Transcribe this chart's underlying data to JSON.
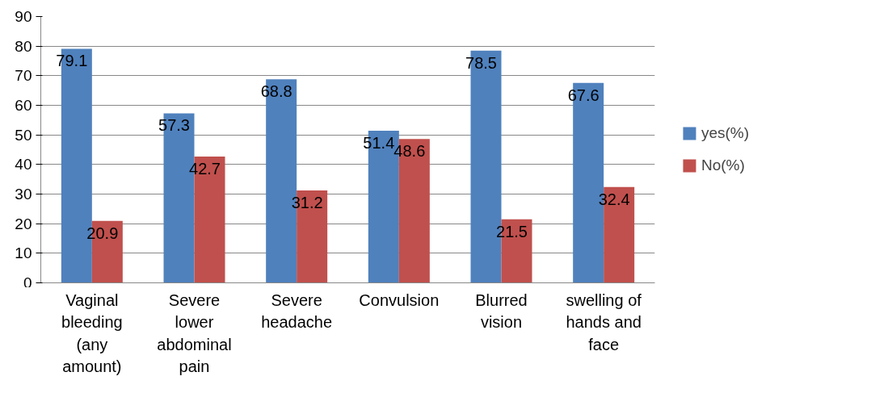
{
  "chart_data": {
    "type": "bar",
    "categories": [
      "Vaginal bleeding (any amount)",
      "Severe lower abdominal pain",
      "Severe headache",
      "Convulsion",
      "Blurred vision",
      "swelling of hands and face"
    ],
    "series": [
      {
        "name": "yes(%)",
        "color": "#4f81bd",
        "values": [
          79.1,
          57.3,
          68.8,
          51.4,
          78.5,
          67.6
        ]
      },
      {
        "name": "No(%)",
        "color": "#c0504d",
        "values": [
          20.9,
          42.7,
          31.2,
          48.6,
          21.5,
          32.4
        ]
      }
    ],
    "ylim": [
      0,
      90
    ],
    "yticks": [
      0,
      10,
      20,
      30,
      40,
      50,
      60,
      70,
      80,
      90
    ],
    "grid": "y",
    "legend": "right",
    "data_labels": true
  }
}
